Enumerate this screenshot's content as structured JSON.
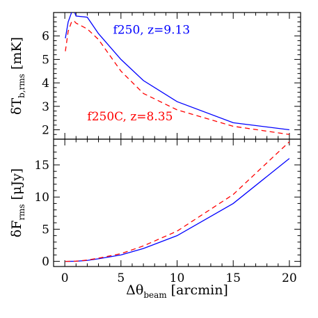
{
  "chart_data": [
    {
      "type": "line",
      "panel": "top",
      "ylabel": {
        "symbol": "δT",
        "sub": "b,rms",
        "unit": "[mK]"
      },
      "xlim": [
        -1,
        21
      ],
      "ylim": [
        1.6,
        7.0
      ],
      "yticks": [
        2,
        3,
        4,
        5,
        6
      ],
      "series": [
        {
          "name": "f250, z=9.13",
          "color": "#0000ff",
          "dash": "solid",
          "x": [
            0.05,
            0.3,
            0.6,
            0.8,
            1.0,
            2.0,
            3.0,
            5.0,
            7.0,
            10.0,
            15.0,
            20.0
          ],
          "y": [
            5.9,
            6.6,
            7.0,
            7.1,
            6.85,
            6.8,
            6.1,
            5.0,
            4.1,
            3.2,
            2.3,
            2.0
          ]
        },
        {
          "name": "f250C, z=8.35",
          "color": "#ff0000",
          "dash": "dashed",
          "x": [
            0.05,
            0.3,
            0.6,
            0.8,
            1.0,
            2.0,
            3.0,
            5.0,
            7.0,
            10.0,
            15.0,
            20.0
          ],
          "y": [
            5.35,
            6.2,
            6.6,
            6.65,
            6.55,
            6.3,
            5.85,
            4.5,
            3.55,
            2.85,
            2.15,
            1.8
          ]
        }
      ],
      "annotations": [
        {
          "text": "f250,  z=9.13",
          "color": "#0000ff",
          "x": 4.3,
          "y": 6.1
        },
        {
          "text": "f250C,  z=8.35",
          "color": "#ff0000",
          "x": 2.0,
          "y": 2.4
        }
      ]
    },
    {
      "type": "line",
      "panel": "bottom",
      "ylabel": {
        "symbol": "δF",
        "sub": "rms",
        "unit": "[μJy]"
      },
      "xlabel": {
        "symbol": "Δθ",
        "sub": "beam",
        "unit": "[arcmin]"
      },
      "xlim": [
        -1,
        21
      ],
      "ylim": [
        -0.8,
        19
      ],
      "xticks": [
        0,
        5,
        10,
        15,
        20
      ],
      "yticks": [
        0,
        5,
        10,
        15
      ],
      "series": [
        {
          "name": "f250, z=9.13",
          "color": "#0000ff",
          "dash": "solid",
          "x": [
            0.05,
            1.0,
            2.0,
            3.0,
            5.0,
            7.0,
            10.0,
            15.0,
            20.0
          ],
          "y": [
            0.0,
            0.02,
            0.15,
            0.4,
            1.0,
            2.0,
            4.0,
            9.0,
            16.0
          ]
        },
        {
          "name": "f250C, z=8.35",
          "color": "#ff0000",
          "dash": "dashed",
          "x": [
            0.05,
            1.0,
            2.0,
            3.0,
            5.0,
            7.0,
            10.0,
            15.0,
            20.0
          ],
          "y": [
            0.0,
            0.03,
            0.2,
            0.5,
            1.2,
            2.4,
            4.7,
            10.4,
            18.6
          ]
        }
      ]
    }
  ]
}
